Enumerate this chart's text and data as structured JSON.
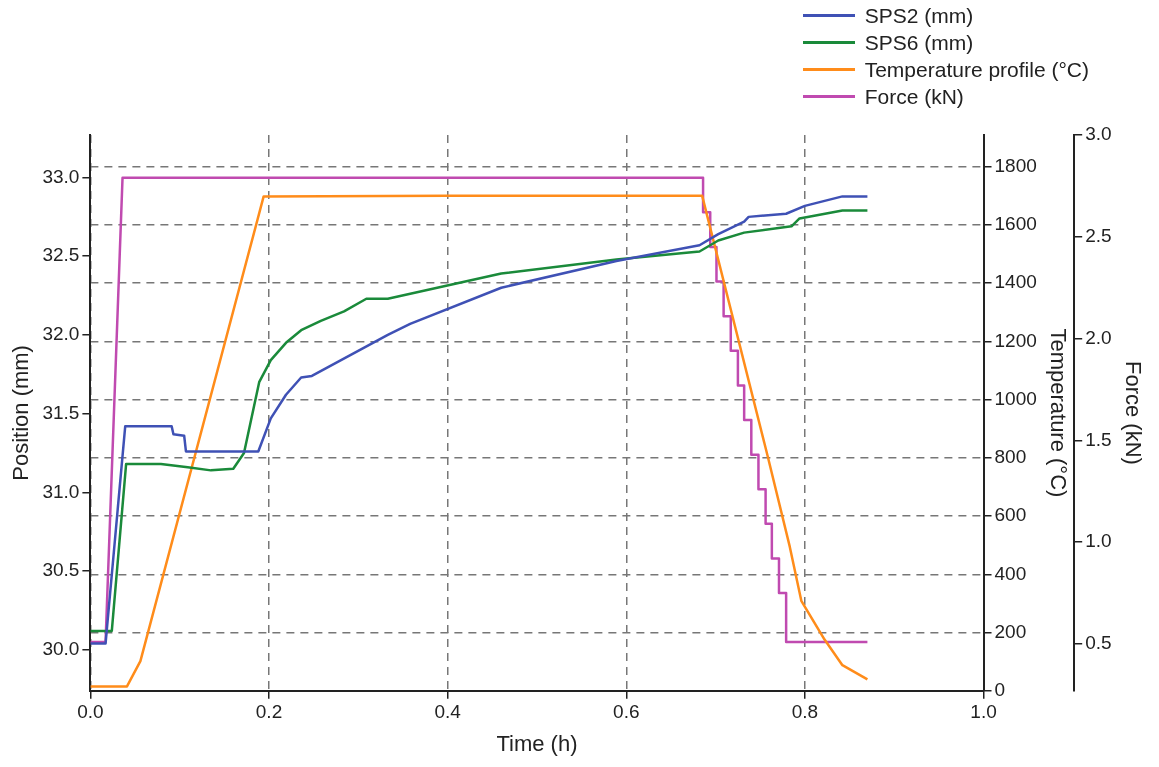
{
  "chart_data": {
    "type": "line",
    "xlabel": "Time (h)",
    "ylabel": "Position (mm)",
    "y2label": "Temperature (°C)",
    "y3label": "Force (kN)",
    "xlim": [
      0,
      1
    ],
    "xticks": [
      {
        "value": 0,
        "label": "0.0"
      },
      {
        "value": 0.2,
        "label": "0.2"
      },
      {
        "value": 0.4,
        "label": "0.4"
      },
      {
        "value": 0.6,
        "label": "0.6"
      },
      {
        "value": 0.8,
        "label": "0.8"
      },
      {
        "value": 1,
        "label": "1.0"
      }
    ],
    "ylim": [
      29.74,
      33.27
    ],
    "yticks": [
      {
        "value": 30,
        "label": "30.0"
      },
      {
        "value": 30.5,
        "label": "30.5"
      },
      {
        "value": 31,
        "label": "31.0"
      },
      {
        "value": 31.5,
        "label": "31.5"
      },
      {
        "value": 32,
        "label": "32.0"
      },
      {
        "value": 32.5,
        "label": "32.5"
      },
      {
        "value": 33,
        "label": "33.0"
      }
    ],
    "y2lim": [
      0,
      1909
    ],
    "y2ticks": [
      0,
      200,
      400,
      600,
      800,
      1000,
      1200,
      1400,
      1600,
      1800
    ],
    "y3lim": [
      0.27,
      3.0
    ],
    "y3ticks": [
      {
        "value": 0.5,
        "label": "0.5"
      },
      {
        "value": 1,
        "label": "1.0"
      },
      {
        "value": 1.5,
        "label": "1.5"
      },
      {
        "value": 2,
        "label": "2.0"
      },
      {
        "value": 2.5,
        "label": "2.5"
      },
      {
        "value": 3,
        "label": "3.0"
      }
    ],
    "grid": true,
    "legend": "top right",
    "series": [
      {
        "name": "SPS2 (mm)",
        "color": "#3f51b5",
        "x": [
          0,
          0.017,
          0.039,
          0.091,
          0.093,
          0.105,
          0.107,
          0.131,
          0.188,
          0.202,
          0.219,
          0.236,
          0.248,
          0.333,
          0.358,
          0.46,
          0.589,
          0.682,
          0.703,
          0.732,
          0.737,
          0.779,
          0.8,
          0.842,
          0.87
        ],
        "values": [
          30.04,
          30.04,
          31.42,
          31.42,
          31.37,
          31.36,
          31.26,
          31.26,
          31.26,
          31.47,
          31.62,
          31.73,
          31.74,
          32.0,
          32.07,
          32.3,
          32.47,
          32.57,
          32.64,
          32.72,
          32.75,
          32.77,
          32.82,
          32.88,
          32.88
        ]
      },
      {
        "name": "SPS6 (mm)",
        "color": "#1a8a3a",
        "x": [
          0,
          0.024,
          0.04,
          0.079,
          0.109,
          0.135,
          0.16,
          0.172,
          0.189,
          0.202,
          0.219,
          0.236,
          0.258,
          0.284,
          0.309,
          0.333,
          0.46,
          0.589,
          0.682,
          0.703,
          0.732,
          0.785,
          0.794,
          0.842,
          0.87
        ],
        "values": [
          30.12,
          30.12,
          31.18,
          31.18,
          31.16,
          31.14,
          31.15,
          31.25,
          31.7,
          31.84,
          31.95,
          32.03,
          32.09,
          32.15,
          32.23,
          32.23,
          32.39,
          32.48,
          32.53,
          32.6,
          32.65,
          32.69,
          32.74,
          32.79,
          32.79
        ]
      },
      {
        "name": "Temperature profile (°C)",
        "color": "#ff8c1a",
        "axis": "y2",
        "x": [
          0,
          0.041,
          0.056,
          0.194,
          0.4,
          0.6,
          0.685,
          0.758,
          0.783,
          0.796,
          0.822,
          0.842,
          0.87
        ],
        "values": [
          15,
          15,
          102,
          1698,
          1700,
          1700,
          1700,
          810,
          496,
          309,
          176,
          88,
          39
        ]
      },
      {
        "name": "Force (kN)",
        "color": "#c04ab0",
        "axis": "y3",
        "x": [
          0,
          0.017,
          0.036,
          0.686,
          0.686,
          0.694,
          0.694,
          0.701,
          0.701,
          0.709,
          0.709,
          0.717,
          0.717,
          0.725,
          0.725,
          0.732,
          0.732,
          0.74,
          0.74,
          0.748,
          0.748,
          0.756,
          0.756,
          0.763,
          0.763,
          0.771,
          0.771,
          0.779,
          0.779,
          0.87
        ],
        "values": [
          0.51,
          0.51,
          2.79,
          2.79,
          2.62,
          2.62,
          2.45,
          2.45,
          2.28,
          2.28,
          2.11,
          2.11,
          1.94,
          1.94,
          1.77,
          1.77,
          1.6,
          1.6,
          1.43,
          1.43,
          1.26,
          1.26,
          1.09,
          1.09,
          0.92,
          0.92,
          0.75,
          0.75,
          0.51,
          0.51
        ]
      }
    ]
  }
}
